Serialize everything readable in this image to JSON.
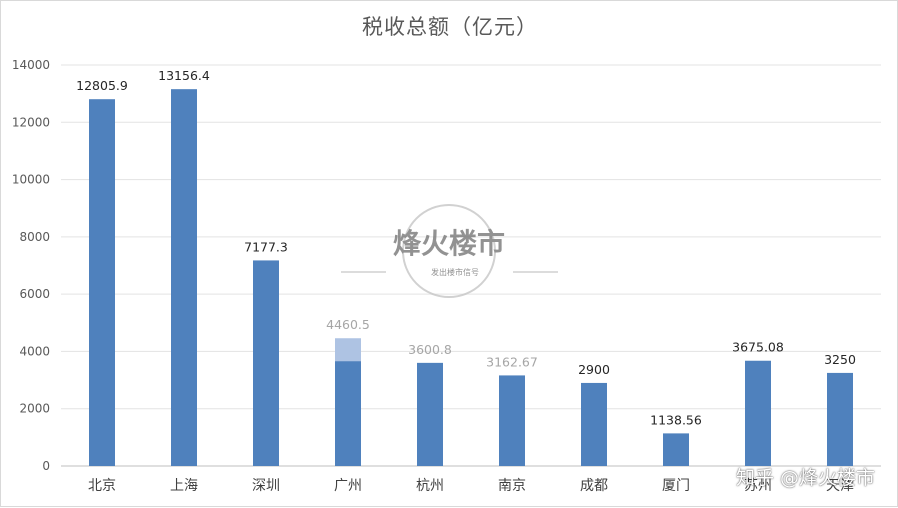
{
  "chart_data": {
    "type": "bar",
    "title": "税收总额（亿元）",
    "categories": [
      "北京",
      "上海",
      "深圳",
      "广州",
      "杭州",
      "南京",
      "成都",
      "厦门",
      "苏州",
      "天津"
    ],
    "values": [
      12805.9,
      13156.4,
      7177.3,
      4460.5,
      3600.8,
      3162.67,
      2900,
      1138.56,
      3675.08,
      3250
    ],
    "value_labels": [
      "12805.9",
      "13156.4",
      "7177.3",
      "4460.5",
      "3600.8",
      "3162.67",
      "2900",
      "1138.56",
      "3675.08",
      "3250"
    ],
    "faded_labels": [
      false,
      false,
      false,
      true,
      true,
      true,
      false,
      false,
      false,
      false
    ],
    "overlay": {
      "category": "广州",
      "base_value": 3660,
      "total_value": 4460.5,
      "overlay_color": "#aec3e3"
    },
    "ylim": [
      0,
      14000
    ],
    "yticks": [
      0,
      2000,
      4000,
      6000,
      8000,
      10000,
      12000,
      14000
    ],
    "grid": true,
    "bar_color": "#4f81bd"
  },
  "watermark": {
    "text": "烽火楼市",
    "small_text": "发出楼市信号"
  },
  "credit": "知乎 @烽火楼市"
}
